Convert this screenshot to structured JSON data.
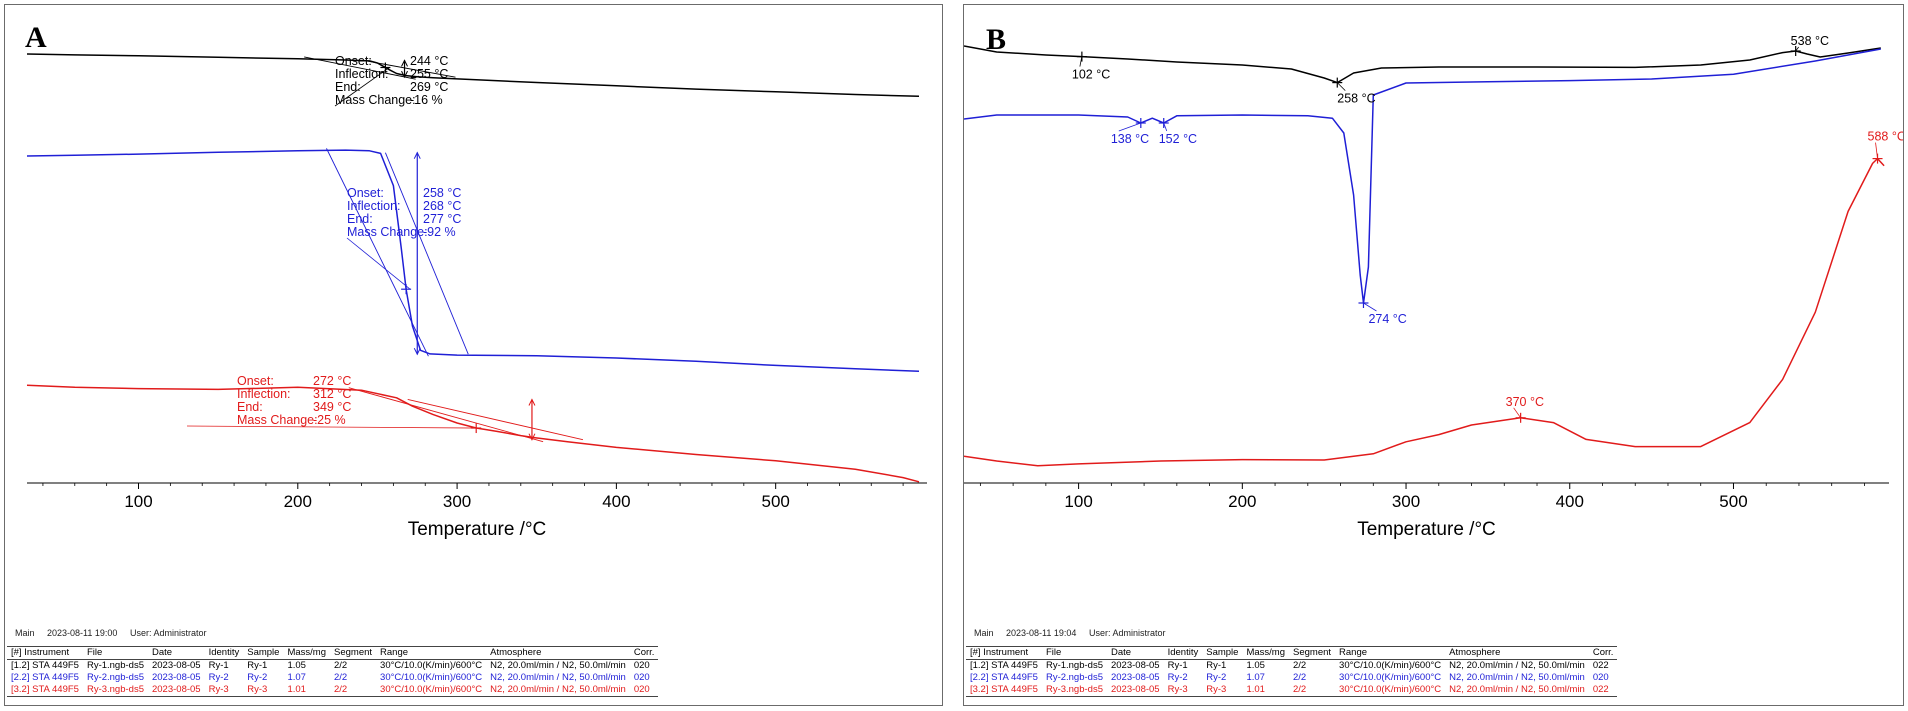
{
  "chart_data": [
    {
      "panel": "A",
      "type": "line",
      "xlabel": "Temperature /°C",
      "xlim": [
        30,
        595
      ],
      "x_ticks": [
        100,
        200,
        300,
        400,
        500
      ],
      "footer": {
        "view": "Main",
        "datetime": "2023-08-11 19:00",
        "user": "User: Administrator"
      },
      "series": [
        {
          "name": "Ry-1",
          "color": "#000000",
          "x": [
            30,
            60,
            100,
            150,
            200,
            230,
            245,
            250,
            258,
            262,
            268,
            275,
            285,
            300,
            350,
            400,
            450,
            500,
            550,
            590
          ],
          "y": [
            3.0,
            3.3,
            3.6,
            4.1,
            4.6,
            5.0,
            5.3,
            6.0,
            8.4,
            9.5,
            10.2,
            10.6,
            10.9,
            11.3,
            12.5,
            13.6,
            14.7,
            15.6,
            16.5,
            17.1
          ]
        },
        {
          "name": "Ry-2",
          "color": "#1f1fd6",
          "x": [
            30,
            60,
            100,
            150,
            200,
            230,
            245,
            252,
            260,
            265,
            268,
            272,
            277,
            283,
            300,
            350,
            400,
            450,
            500,
            550,
            590
          ],
          "y": [
            30,
            29.8,
            29.5,
            29.0,
            28.6,
            28.4,
            28.6,
            29.3,
            38,
            55,
            66,
            76,
            82.5,
            83.5,
            83.8,
            84.0,
            84.6,
            85.5,
            86.6,
            87.5,
            88.2
          ]
        },
        {
          "name": "Ry-3",
          "color": "#e11b1b",
          "x": [
            30,
            60,
            100,
            150,
            200,
            240,
            262,
            272,
            285,
            300,
            312,
            325,
            340,
            349,
            370,
            400,
            450,
            500,
            550,
            580,
            590
          ],
          "y": [
            81,
            81.5,
            81.8,
            82.0,
            81.5,
            82.2,
            84.0,
            86.0,
            88.0,
            90.0,
            91.2,
            92.0,
            93.0,
            93.5,
            94.5,
            95.8,
            97.5,
            99.0,
            101.0,
            103.0,
            104.0
          ]
        }
      ],
      "annotations": [
        {
          "series": "Ry-1",
          "onset": "244 °C",
          "inflection": "255 °C",
          "end": "269 °C",
          "mass_change": "-16 %"
        },
        {
          "series": "Ry-2",
          "onset": "258 °C",
          "inflection": "268 °C",
          "end": "277 °C",
          "mass_change": "-92 %"
        },
        {
          "series": "Ry-3",
          "onset": "272 °C",
          "inflection": "312 °C",
          "end": "349 °C",
          "mass_change": "-25 %"
        }
      ],
      "annotation_labels": {
        "onset": "Onset:",
        "inflection": "Inflection:",
        "end": "End:",
        "mass_change": "Mass Change:"
      }
    },
    {
      "panel": "B",
      "type": "line",
      "xlabel": "Temperature /°C",
      "xlim": [
        30,
        595
      ],
      "x_ticks": [
        100,
        200,
        300,
        400,
        500
      ],
      "footer": {
        "view": "Main",
        "datetime": "2023-08-11 19:04",
        "user": "User: Administrator"
      },
      "series": [
        {
          "name": "Ry-1",
          "color": "#000000",
          "x": [
            30,
            50,
            80,
            102,
            130,
            160,
            200,
            230,
            250,
            258,
            268,
            285,
            320,
            380,
            440,
            480,
            510,
            530,
            538,
            545,
            553,
            570,
            590
          ],
          "y": [
            10.5,
            13.5,
            15.0,
            15.8,
            17.0,
            18.5,
            20.0,
            22.0,
            26.5,
            28.8,
            24.0,
            21.5,
            21.0,
            21.0,
            21.2,
            20.0,
            17.5,
            13.8,
            13.0,
            14.5,
            16.0,
            14.0,
            11.5
          ]
        },
        {
          "name": "Ry-2",
          "color": "#1f1fd6",
          "x": [
            30,
            50,
            100,
            130,
            138,
            145,
            152,
            160,
            200,
            240,
            255,
            262,
            268,
            272,
            274,
            277,
            280,
            300,
            350,
            400,
            450,
            500,
            550,
            590
          ],
          "y": [
            36.0,
            35.0,
            35.0,
            35.5,
            37.0,
            35.8,
            37.0,
            35.2,
            35.0,
            35.2,
            35.8,
            39.5,
            55.0,
            75.0,
            82.0,
            73.0,
            30.0,
            27.0,
            26.7,
            26.4,
            26.0,
            24.8,
            21.5,
            18.5
          ]
        },
        {
          "name": "Ry-3",
          "color": "#e11b1b",
          "x": [
            30,
            50,
            75,
            100,
            150,
            200,
            250,
            280,
            300,
            320,
            340,
            370,
            390,
            410,
            440,
            480,
            510,
            530,
            550,
            570,
            585,
            588,
            592
          ],
          "y": [
            94.0,
            95.0,
            96.0,
            95.6,
            95.0,
            94.7,
            94.8,
            93.5,
            91.0,
            89.5,
            87.5,
            86.0,
            87.0,
            90.5,
            92.0,
            92.0,
            87.0,
            78.0,
            64.0,
            43.0,
            33.0,
            32.0,
            33.5
          ]
        }
      ],
      "annotations": [
        {
          "series": "Ry-1",
          "peaks": [
            "102 °C",
            "258 °C",
            "538 °C"
          ]
        },
        {
          "series": "Ry-2",
          "peaks": [
            "138 °C",
            "152 °C",
            "274 °C"
          ]
        },
        {
          "series": "Ry-3",
          "peaks": [
            "370 °C",
            "588 °C"
          ]
        }
      ]
    }
  ],
  "legend_table": {
    "headers": [
      "[#] Instrument",
      "File",
      "Date",
      "Identity",
      "Sample",
      "Mass/mg",
      "Segment",
      "Range",
      "Atmosphere",
      "Corr."
    ],
    "rows_a": [
      {
        "color": "#000000",
        "cells": [
          "[1.2] STA 449F5",
          "Ry-1.ngb-ds5",
          "2023-08-05",
          "Ry-1",
          "Ry-1",
          "1.05",
          "2/2",
          "30°C/10.0(K/min)/600°C",
          "N2, 20.0ml/min / N2, 50.0ml/min",
          "020"
        ]
      },
      {
        "color": "#1f1fd6",
        "cells": [
          "[2.2] STA 449F5",
          "Ry-2.ngb-ds5",
          "2023-08-05",
          "Ry-2",
          "Ry-2",
          "1.07",
          "2/2",
          "30°C/10.0(K/min)/600°C",
          "N2, 20.0ml/min / N2, 50.0ml/min",
          "020"
        ]
      },
      {
        "color": "#e11b1b",
        "cells": [
          "[3.2] STA 449F5",
          "Ry-3.ngb-ds5",
          "2023-08-05",
          "Ry-3",
          "Ry-3",
          "1.01",
          "2/2",
          "30°C/10.0(K/min)/600°C",
          "N2, 20.0ml/min / N2, 50.0ml/min",
          "020"
        ]
      }
    ],
    "rows_b": [
      {
        "color": "#000000",
        "cells": [
          "[1.2] STA 449F5",
          "Ry-1.ngb-ds5",
          "2023-08-05",
          "Ry-1",
          "Ry-1",
          "1.05",
          "2/2",
          "30°C/10.0(K/min)/600°C",
          "N2, 20.0ml/min / N2, 50.0ml/min",
          "022"
        ]
      },
      {
        "color": "#1f1fd6",
        "cells": [
          "[2.2] STA 449F5",
          "Ry-2.ngb-ds5",
          "2023-08-05",
          "Ry-2",
          "Ry-2",
          "1.07",
          "2/2",
          "30°C/10.0(K/min)/600°C",
          "N2, 20.0ml/min / N2, 50.0ml/min",
          "020"
        ]
      },
      {
        "color": "#e11b1b",
        "cells": [
          "[3.2] STA 449F5",
          "Ry-3.ngb-ds5",
          "2023-08-05",
          "Ry-3",
          "Ry-3",
          "1.01",
          "2/2",
          "30°C/10.0(K/min)/600°C",
          "N2, 20.0ml/min / N2, 50.0ml/min",
          "022"
        ]
      }
    ]
  },
  "panel_letters": [
    "A",
    "B"
  ]
}
